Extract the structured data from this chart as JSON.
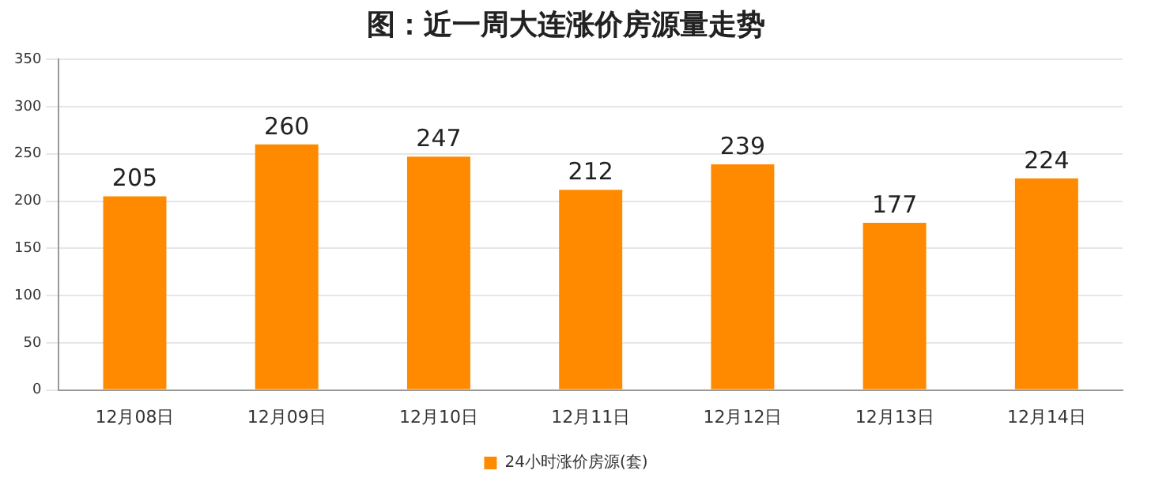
{
  "chart_data": {
    "type": "bar",
    "title": "图：近一周大连涨价房源量走势",
    "categories": [
      "12月08日",
      "12月09日",
      "12月10日",
      "12月11日",
      "12月12日",
      "12月13日",
      "12月14日"
    ],
    "series": [
      {
        "name": "24小时涨价房源(套)",
        "color": "#ff8a00",
        "values": [
          205,
          260,
          247,
          212,
          239,
          177,
          224
        ]
      }
    ],
    "ylim": [
      0,
      350
    ],
    "yticks": [
      0,
      50,
      100,
      150,
      200,
      250,
      300,
      350
    ],
    "grid": "y",
    "legend": "bottom",
    "data_labels": true
  }
}
